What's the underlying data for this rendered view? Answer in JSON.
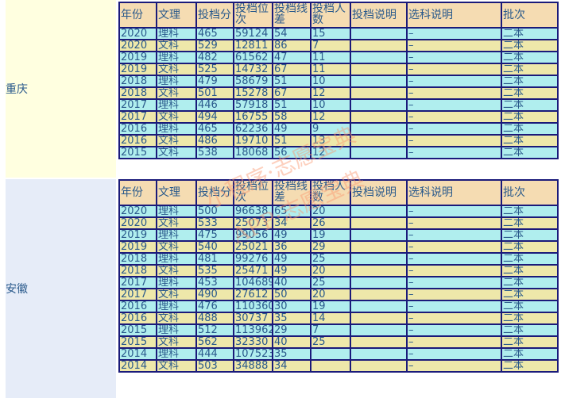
{
  "headers": [
    "年份",
    "文理",
    "投档分",
    "投档位次",
    "投档线差",
    "投档人数",
    "投档说明",
    "选科说明",
    "批次"
  ],
  "sections": [
    {
      "province": "重庆",
      "rows": [
        [
          "2020",
          "理科",
          "465",
          "59124",
          "54",
          "15",
          "",
          "–",
          "二本"
        ],
        [
          "2020",
          "文科",
          "529",
          "12811",
          "86",
          "7",
          "",
          "–",
          "二本"
        ],
        [
          "2019",
          "理科",
          "482",
          "61562",
          "47",
          "11",
          "",
          "–",
          "二本"
        ],
        [
          "2019",
          "文科",
          "525",
          "14732",
          "67",
          "11",
          "",
          "–",
          "二本"
        ],
        [
          "2018",
          "理科",
          "479",
          "58679",
          "51",
          "10",
          "",
          "–",
          "二本"
        ],
        [
          "2018",
          "文科",
          "501",
          "15278",
          "67",
          "12",
          "",
          "–",
          "二本"
        ],
        [
          "2017",
          "理科",
          "446",
          "57918",
          "51",
          "10",
          "",
          "–",
          "二本"
        ],
        [
          "2017",
          "文科",
          "494",
          "16755",
          "58",
          "12",
          "",
          "–",
          "二本"
        ],
        [
          "2016",
          "理科",
          "465",
          "62236",
          "49",
          "9",
          "",
          "–",
          "二本"
        ],
        [
          "2016",
          "文科",
          "486",
          "19710",
          "51",
          "13",
          "",
          "–",
          "二本"
        ],
        [
          "2015",
          "文科",
          "538",
          "18068",
          "56",
          "12",
          "",
          "–",
          "二本"
        ]
      ]
    },
    {
      "province": "安徽",
      "rows": [
        [
          "2020",
          "理科",
          "500",
          "96638",
          "65",
          "20",
          "",
          "–",
          "二本"
        ],
        [
          "2020",
          "文科",
          "533",
          "25073",
          "34",
          "26",
          "",
          "–",
          "二本"
        ],
        [
          "2019",
          "理科",
          "475",
          "99056",
          "49",
          "19",
          "",
          "–",
          "二本"
        ],
        [
          "2019",
          "文科",
          "540",
          "25021",
          "36",
          "29",
          "",
          "–",
          "二本"
        ],
        [
          "2018",
          "理科",
          "481",
          "99276",
          "49",
          "25",
          "",
          "–",
          "二本"
        ],
        [
          "2018",
          "文科",
          "535",
          "25471",
          "49",
          "20",
          "",
          "–",
          "二本"
        ],
        [
          "2017",
          "理科",
          "453",
          "104689",
          "40",
          "25",
          "",
          "–",
          "二本"
        ],
        [
          "2017",
          "文科",
          "490",
          "27612",
          "50",
          "20",
          "",
          "–",
          "二本"
        ],
        [
          "2016",
          "理科",
          "476",
          "110360",
          "30",
          "19",
          "",
          "–",
          "二本"
        ],
        [
          "2016",
          "文科",
          "488",
          "30737",
          "35",
          "14",
          "",
          "–",
          "二本"
        ],
        [
          "2015",
          "理科",
          "512",
          "113962",
          "29",
          "7",
          "",
          "–",
          "二本"
        ],
        [
          "2015",
          "文科",
          "562",
          "32330",
          "40",
          "25",
          "",
          "–",
          "二本"
        ],
        [
          "2014",
          "理科",
          "444",
          "107523",
          "35",
          "",
          "",
          "–",
          "二本"
        ],
        [
          "2014",
          "文科",
          "503",
          "34888",
          "34",
          "",
          "",
          "–",
          "二本"
        ]
      ]
    }
  ],
  "watermark": [
    "小程序·志愿宝典",
    "APP·志愿宝典"
  ],
  "colors": {
    "header": "#f5dcb2",
    "row_cyan": "#b0eeee",
    "row_yellow": "#eee8aa",
    "border": "#1a1a7a"
  }
}
